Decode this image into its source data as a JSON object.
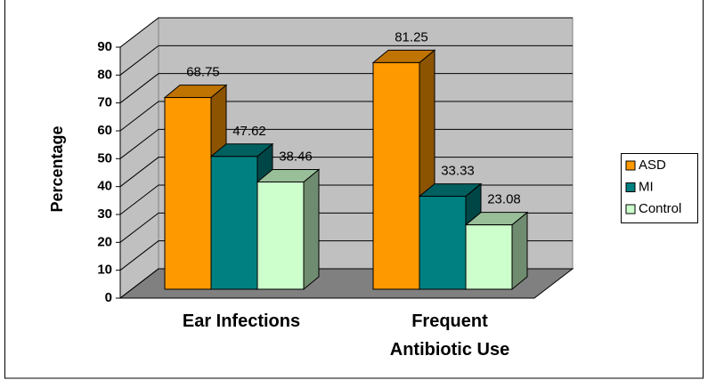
{
  "chart_data": {
    "type": "bar3d",
    "y_label": "Percentage",
    "categories": [
      "Ear Infections",
      "Frequent Antibiotic Use"
    ],
    "series": [
      {
        "name": "ASD",
        "color": "#FF9900",
        "values": [
          68.75,
          81.25
        ]
      },
      {
        "name": "MI",
        "color": "#008080",
        "values": [
          47.62,
          33.33
        ]
      },
      {
        "name": "Control",
        "color": "#CCFFCC",
        "values": [
          38.46,
          23.08
        ]
      }
    ],
    "ylim": [
      0,
      90
    ],
    "yticks": [
      0,
      10,
      20,
      30,
      40,
      50,
      60,
      70,
      80,
      90
    ],
    "grid": true,
    "legend": "right"
  }
}
